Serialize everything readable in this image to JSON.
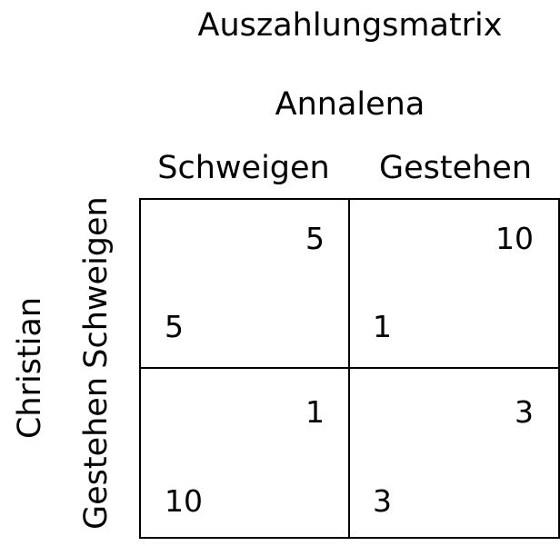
{
  "title": "Auszahlungsmatrix",
  "column_player": "Annalena",
  "row_player": "Christian",
  "column_strategies": [
    "Schweigen",
    "Gestehen"
  ],
  "row_strategies": [
    "Schweigen",
    "Gestehen"
  ],
  "cells": [
    [
      {
        "column_payoff": "5",
        "row_payoff": "5"
      },
      {
        "column_payoff": "10",
        "row_payoff": "1"
      }
    ],
    [
      {
        "column_payoff": "1",
        "row_payoff": "10"
      },
      {
        "column_payoff": "3",
        "row_payoff": "3"
      }
    ]
  ]
}
